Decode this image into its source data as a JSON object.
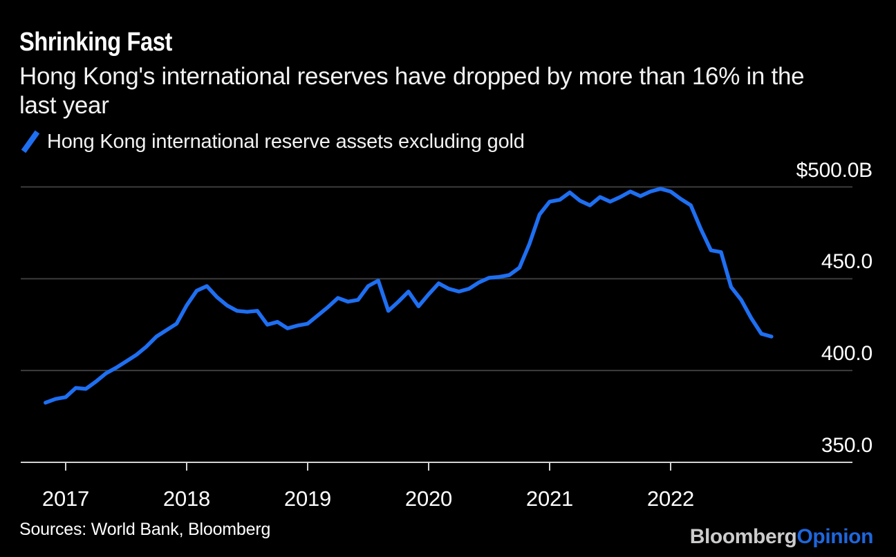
{
  "header": {
    "title": "Shrinking Fast",
    "subtitle_lines": [
      "Hong Kong's international reserves have dropped by more than 16% in the",
      "last year"
    ]
  },
  "legend": {
    "label": "Hong Kong international reserve assets excluding gold",
    "swatch_color": "#1e6ff2"
  },
  "source": "Sources: World Bank, Bloomberg",
  "logo": {
    "brand": "Bloomberg",
    "suffix": "Opinion",
    "brand_color": "#cccccc",
    "suffix_color": "#1e67dd"
  },
  "chart_data": {
    "type": "line",
    "title": "Shrinking Fast",
    "subtitle": "Hong Kong's international reserves have dropped by more than 16% in the last year",
    "unit": "USD billions",
    "frequency": "monthly",
    "x_start": "2016-11",
    "x_end": "2022-11",
    "x_tick_labels": [
      "2017",
      "2018",
      "2019",
      "2020",
      "2021",
      "2022"
    ],
    "y_ticks": [
      {
        "label": "$500.0B",
        "value": 500
      },
      {
        "label": "450.0",
        "value": 450
      },
      {
        "label": "400.0",
        "value": 400
      },
      {
        "label": "350.0",
        "value": 350
      }
    ],
    "ylim": [
      350,
      500
    ],
    "grid": "horizontal",
    "legend_position": "top-left",
    "series": [
      {
        "name": "Hong Kong international reserve assets excluding gold",
        "color": "#1e6ff2",
        "values": [
          382.5,
          384.5,
          385.5,
          390.5,
          390.0,
          394.0,
          398.5,
          401.5,
          405.0,
          408.5,
          413.0,
          418.5,
          422.0,
          425.5,
          435.5,
          443.5,
          446.0,
          440.0,
          435.5,
          432.5,
          432.0,
          432.5,
          425.0,
          426.5,
          423.0,
          424.5,
          425.5,
          430.0,
          434.5,
          439.5,
          437.5,
          438.5,
          446.0,
          449.0,
          432.5,
          437.5,
          443.0,
          435.0,
          441.5,
          447.5,
          444.5,
          443.0,
          444.5,
          448.0,
          450.5,
          451.0,
          452.0,
          456.0,
          469.0,
          485.0,
          492.0,
          493.0,
          497.0,
          492.5,
          490.0,
          494.5,
          492.0,
          494.5,
          497.5,
          495.0,
          497.5,
          499.0,
          497.5,
          493.5,
          490.0,
          477.0,
          465.5,
          464.5,
          445.5,
          438.5,
          428.5,
          420.0,
          418.5
        ]
      }
    ],
    "axis_colors": {
      "gridline": "#3d3d3d",
      "baseline": "#d4d4d4"
    }
  }
}
